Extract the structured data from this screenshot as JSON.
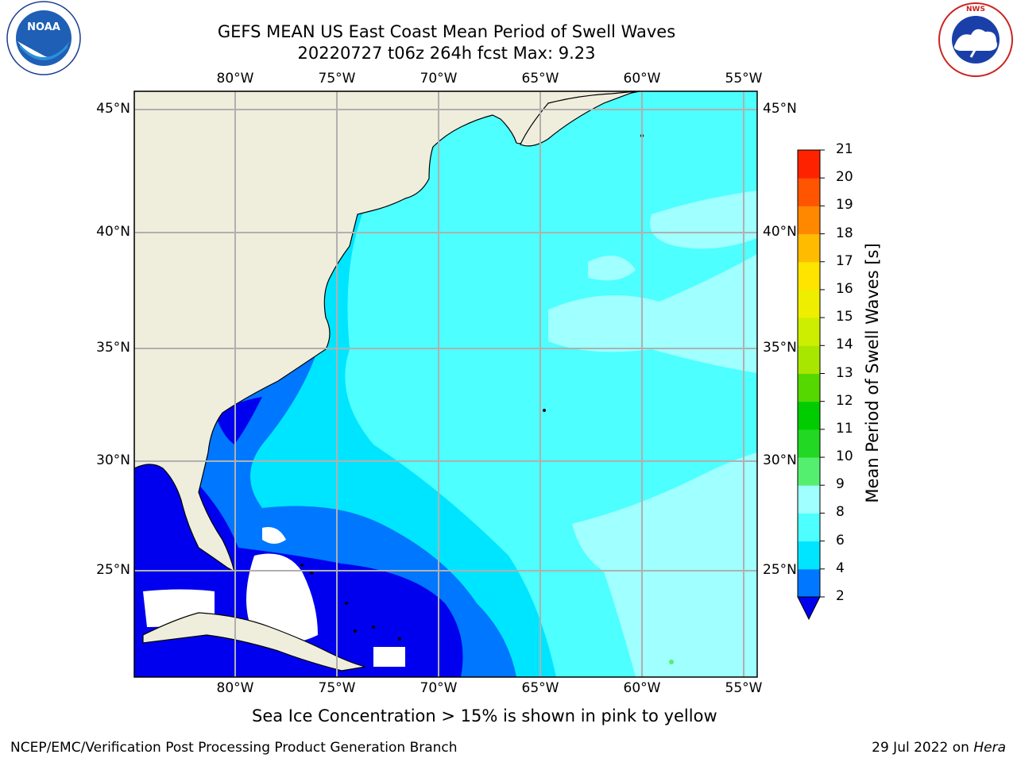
{
  "title": {
    "line1": "GEFS MEAN US East Coast Mean Period of Swell Waves",
    "line2": "20220727 t06z 264h fcst   Max: 9.23"
  },
  "logos": {
    "noaa": {
      "text": "NOAA",
      "ring_text": "NATIONAL OCEANIC AND ATMOSPHERIC ADMINISTRATION · U.S. DEPARTMENT OF COMMERCE"
    },
    "nws": {
      "ring_text": "NATIONAL WEATHER SERVICE"
    }
  },
  "map": {
    "lon_labels": [
      "80°W",
      "75°W",
      "70°W",
      "65°W",
      "60°W",
      "55°W"
    ],
    "lat_labels": [
      "45°N",
      "40°N",
      "35°N",
      "30°N",
      "25°N"
    ],
    "lon_values": [
      -80,
      -75,
      -70,
      -65,
      -60,
      -55
    ],
    "lat_values": [
      45,
      40,
      35,
      30,
      25
    ],
    "extent": {
      "lon_min": -85,
      "lon_max": -54.3,
      "lat_min": 20.5,
      "lat_max": 46
    },
    "colors": {
      "land": "#efeddc",
      "no_data": "#ffffff",
      "gridline": "#b0b0b0",
      "coast": "#000000"
    }
  },
  "colorbar": {
    "label": "Mean Period of Swell Waves [s]",
    "ticks": [
      "2",
      "4",
      "6",
      "8",
      "9",
      "10",
      "11",
      "12",
      "13",
      "14",
      "15",
      "16",
      "17",
      "18",
      "19",
      "20",
      "21"
    ],
    "colors": [
      "#0000ee",
      "#0077ff",
      "#00e5ff",
      "#4dffff",
      "#a0ffff",
      "#55ef70",
      "#22d822",
      "#00cc00",
      "#55d800",
      "#a8e600",
      "#cdee00",
      "#eeee00",
      "#ffe400",
      "#ffbb00",
      "#ff8800",
      "#ff5500",
      "#ff2200",
      "#ff0000"
    ],
    "under_color": "#0000ee"
  },
  "note": "Sea Ice Concentration > 15% is shown in pink to yellow",
  "footer": {
    "left": "NCEP/EMC/Verification Post Processing Product Generation Branch",
    "date": "29 Jul 2022 on",
    "host": "Hera"
  }
}
